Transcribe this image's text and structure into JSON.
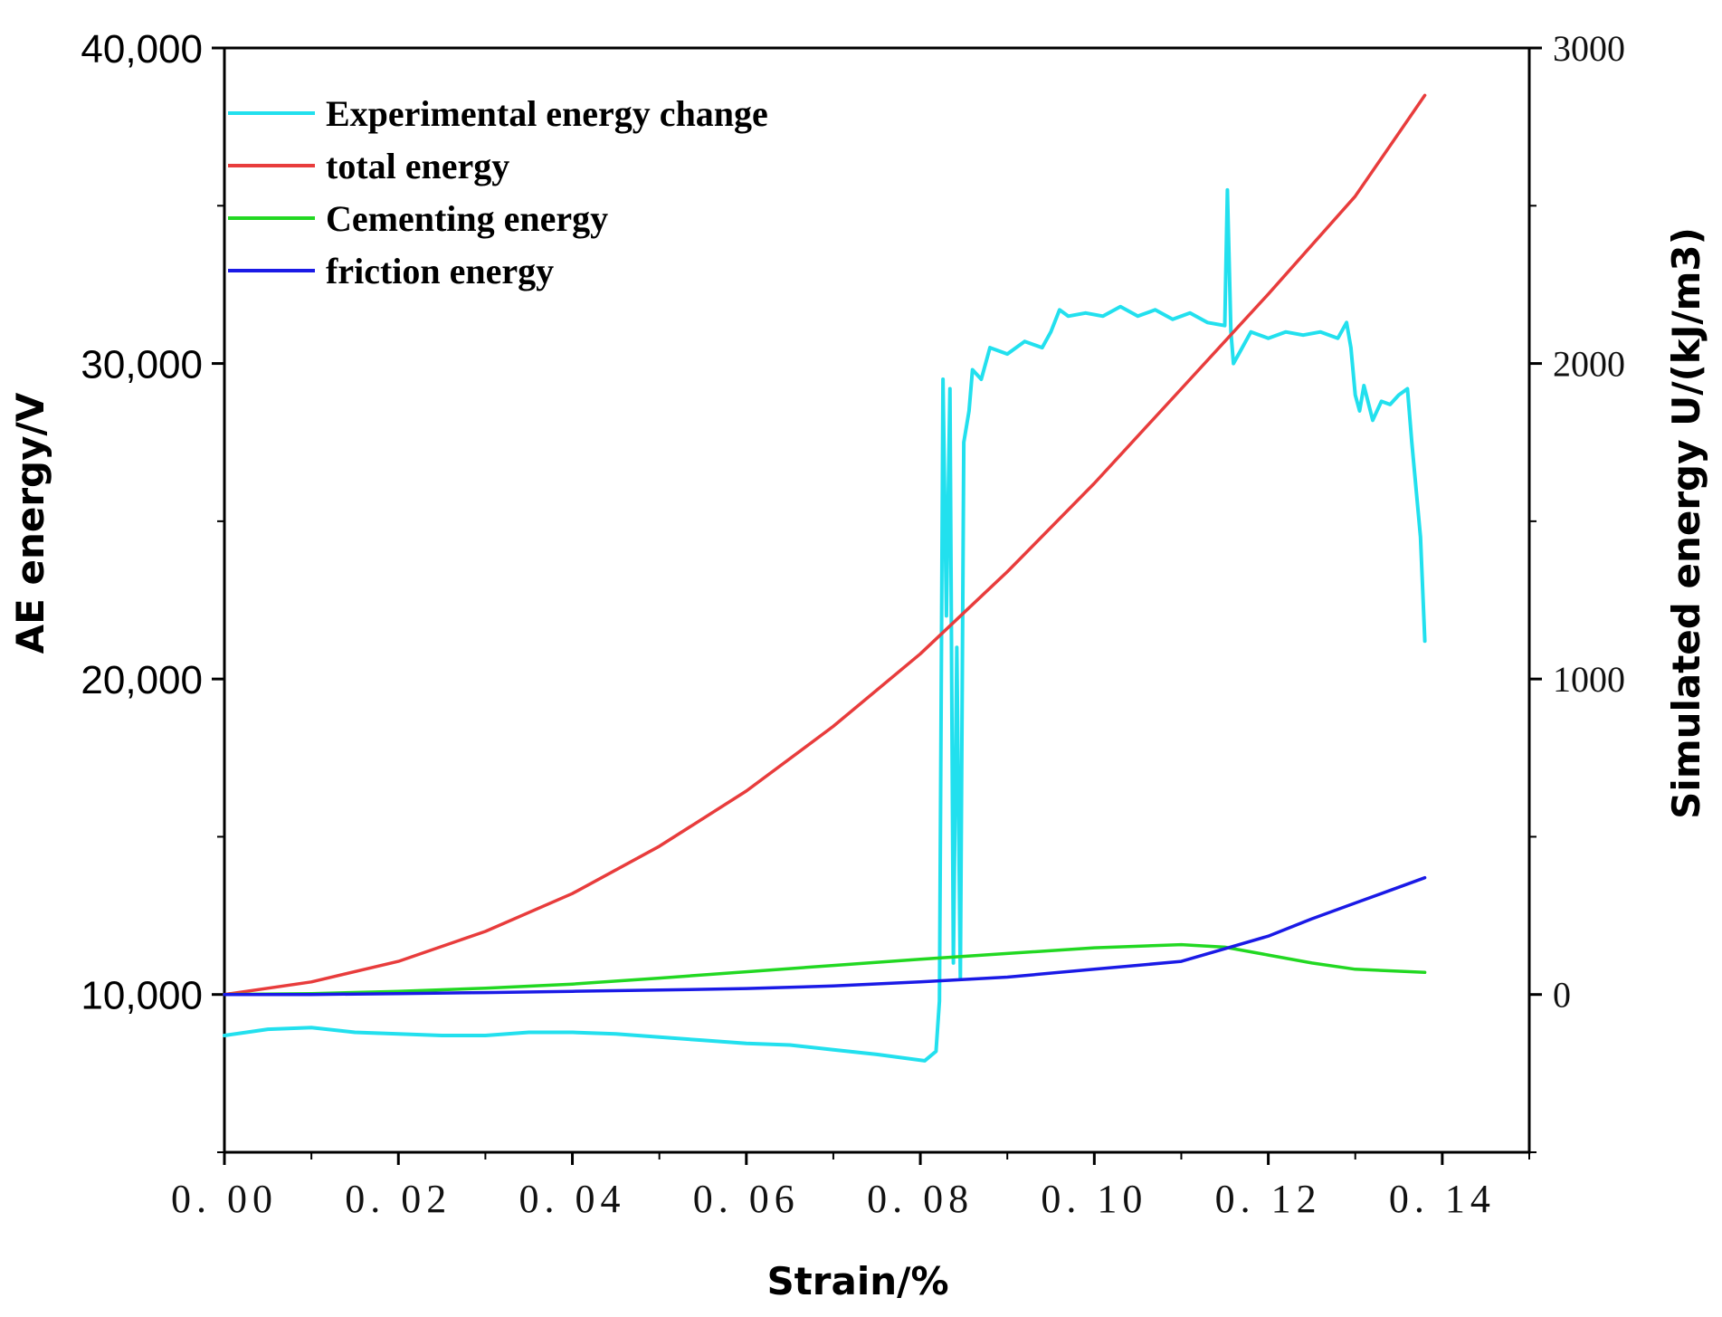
{
  "chart_data": {
    "type": "line",
    "title": "",
    "xlabel": "Strain/%",
    "ylabel": "AE energy/V",
    "y2label": "Simulated energy U/(kJ/m3)",
    "xlim": [
      0,
      0.15
    ],
    "ylim": [
      5000,
      40000
    ],
    "y2lim": [
      -500,
      3000
    ],
    "x_ticks": [
      0,
      0.02,
      0.04,
      0.06,
      0.08,
      0.1,
      0.12,
      0.14
    ],
    "x_tick_labels": [
      "0. 00",
      "0. 02",
      "0. 04",
      "0. 06",
      "0. 08",
      "0. 10",
      "0. 12",
      "0. 14"
    ],
    "y_ticks": [
      10000,
      20000,
      30000,
      40000
    ],
    "y_tick_labels": [
      "10,000",
      "20,000",
      "30,000",
      "40,000"
    ],
    "y2_ticks": [
      0,
      1000,
      2000,
      3000
    ],
    "y2_tick_labels": [
      "0",
      "1000",
      "2000",
      "3000"
    ],
    "legend_position": "top-left",
    "series": [
      {
        "name": "Experimental energy change",
        "axis": "left",
        "color": "#22e0ee",
        "x": [
          0,
          0.005,
          0.01,
          0.015,
          0.02,
          0.025,
          0.03,
          0.035,
          0.04,
          0.045,
          0.05,
          0.055,
          0.06,
          0.065,
          0.07,
          0.075,
          0.0805,
          0.0818,
          0.0822,
          0.0826,
          0.083,
          0.0834,
          0.0838,
          0.0842,
          0.0846,
          0.085,
          0.0856,
          0.086,
          0.087,
          0.088,
          0.09,
          0.092,
          0.094,
          0.095,
          0.096,
          0.097,
          0.099,
          0.101,
          0.103,
          0.105,
          0.107,
          0.109,
          0.111,
          0.113,
          0.115,
          0.1153,
          0.1157,
          0.116,
          0.117,
          0.118,
          0.12,
          0.122,
          0.124,
          0.126,
          0.128,
          0.129,
          0.1295,
          0.13,
          0.1305,
          0.131,
          0.132,
          0.133,
          0.134,
          0.135,
          0.136,
          0.1365,
          0.137,
          0.1375,
          0.138
        ],
        "values": [
          8700,
          8900,
          8950,
          8800,
          8750,
          8700,
          8700,
          8800,
          8800,
          8750,
          8650,
          8550,
          8450,
          8400,
          8250,
          8100,
          7900,
          8200,
          9800,
          29500,
          22000,
          29200,
          11000,
          21000,
          10500,
          27500,
          28500,
          29800,
          29500,
          30500,
          30300,
          30700,
          30500,
          31000,
          31700,
          31500,
          31600,
          31500,
          31800,
          31500,
          31700,
          31400,
          31600,
          31300,
          31200,
          35500,
          31000,
          30000,
          30500,
          31000,
          30800,
          31000,
          30900,
          31000,
          30800,
          31300,
          30500,
          29000,
          28500,
          29300,
          28200,
          28800,
          28700,
          29000,
          29200,
          27500,
          26000,
          24500,
          21200
        ]
      },
      {
        "name": "total energy",
        "axis": "right",
        "color": "#e83c3c",
        "x": [
          0,
          0.01,
          0.02,
          0.03,
          0.04,
          0.05,
          0.06,
          0.07,
          0.08,
          0.09,
          0.1,
          0.11,
          0.12,
          0.13,
          0.138
        ],
        "values": [
          0,
          40,
          105,
          200,
          320,
          470,
          645,
          850,
          1080,
          1340,
          1620,
          1920,
          2220,
          2530,
          2850
        ]
      },
      {
        "name": "Cementing energy",
        "axis": "right",
        "color": "#22d822",
        "x": [
          0,
          0.01,
          0.02,
          0.03,
          0.04,
          0.05,
          0.06,
          0.07,
          0.08,
          0.09,
          0.1,
          0.11,
          0.115,
          0.12,
          0.125,
          0.13,
          0.138
        ],
        "values": [
          0,
          3,
          10,
          20,
          33,
          52,
          72,
          92,
          112,
          130,
          148,
          158,
          150,
          125,
          100,
          80,
          70
        ]
      },
      {
        "name": "friction energy",
        "axis": "right",
        "color": "#1a1ae6",
        "x": [
          0,
          0.01,
          0.02,
          0.03,
          0.04,
          0.05,
          0.06,
          0.07,
          0.08,
          0.09,
          0.1,
          0.11,
          0.115,
          0.12,
          0.125,
          0.13,
          0.134,
          0.138
        ],
        "values": [
          0,
          0,
          3,
          6,
          10,
          14,
          19,
          27,
          40,
          55,
          80,
          105,
          145,
          185,
          240,
          290,
          330,
          370
        ]
      }
    ]
  }
}
